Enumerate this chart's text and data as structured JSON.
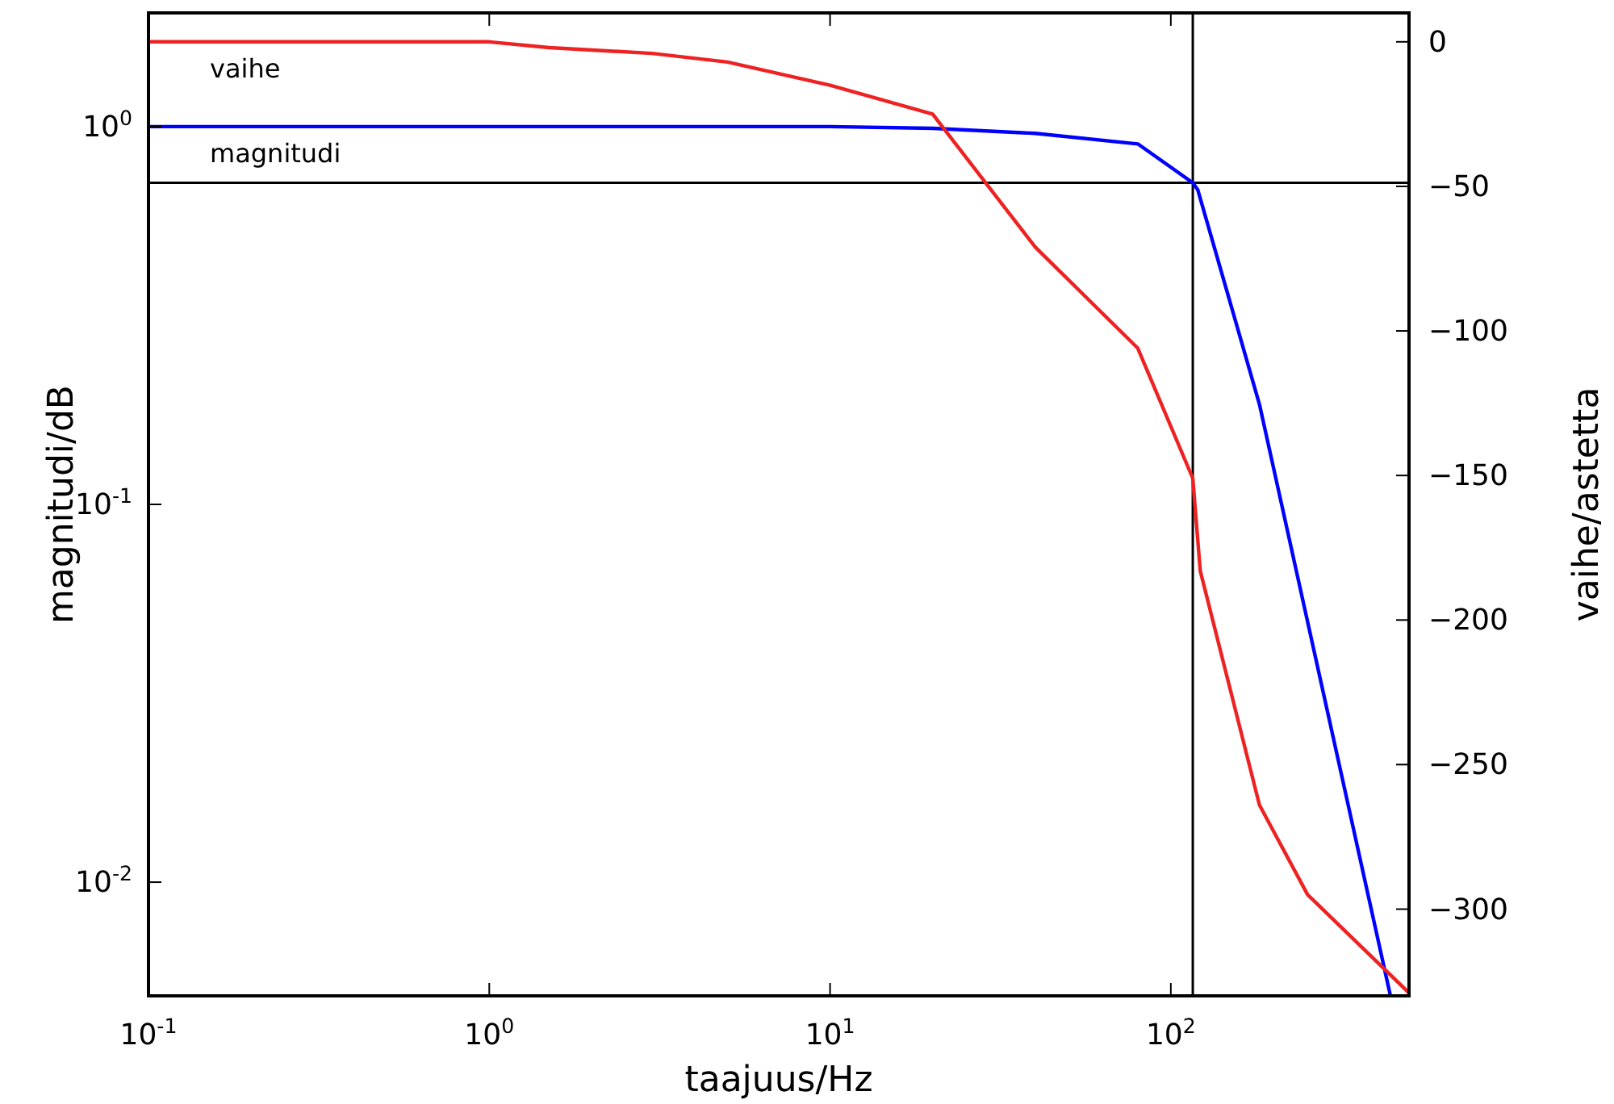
{
  "chart_data": {
    "type": "line",
    "xlabel": "taajuus/Hz",
    "ylabel": "magnitudi/dB",
    "y2label": "vaihe/astetta",
    "log": "xy",
    "grid": false,
    "marker": "none",
    "line_style": "solid",
    "xlim": [
      0.1,
      500
    ],
    "xticks": [
      {
        "value": 0.1,
        "label": "10$^{-1}$"
      },
      {
        "value": 1,
        "label": "10$^{0}$"
      },
      {
        "value": 10,
        "label": "10$^{1}$"
      },
      {
        "value": 100,
        "label": "10$^{2}$"
      }
    ],
    "ylim": [
      0.005,
      2
    ],
    "yticks": [
      {
        "value": 0.01,
        "label": "10$^{-2}$"
      },
      {
        "value": 0.1,
        "label": "10$^{-1}$"
      },
      {
        "value": 1,
        "label": "10$^{0}$"
      }
    ],
    "y2lim": [
      -330,
      10
    ],
    "y2ticks": [
      0,
      {
        "value": -50,
        "label": "−50"
      },
      {
        "value": -100,
        "label": "−100"
      },
      {
        "value": -150,
        "label": "−150"
      },
      {
        "value": -200,
        "label": "−200"
      },
      {
        "value": -250,
        "label": "−250"
      },
      {
        "value": -300,
        "label": "−300"
      }
    ],
    "series": [
      {
        "name": "magnitudi",
        "color": "#0000ff",
        "x": [
          0.1,
          0.3,
          1,
          1.5,
          10,
          20,
          40,
          80,
          116,
          120,
          182,
          441
        ],
        "values": [
          1.0,
          1.0,
          1.0,
          1.0,
          1.0,
          0.99,
          0.96,
          0.9,
          0.71,
          0.68,
          0.184,
          0.005
        ]
      },
      {
        "name": "vaihe",
        "color": "#ee2222",
        "axis": "y2",
        "x": [
          0.1,
          1,
          1.5,
          3,
          5,
          10,
          20,
          40,
          80,
          116,
          122,
          182,
          252,
          500
        ],
        "values": [
          0,
          0,
          -2,
          -4,
          -7,
          -15,
          -25,
          -71,
          -106,
          -151,
          -183,
          -264,
          -295,
          -329
        ]
      }
    ],
    "ref_lines": [
      {
        "axis": "y",
        "value": 0.71,
        "color": "#000000"
      },
      {
        "axis": "x",
        "value": 116,
        "color": "#000000"
      }
    ]
  }
}
